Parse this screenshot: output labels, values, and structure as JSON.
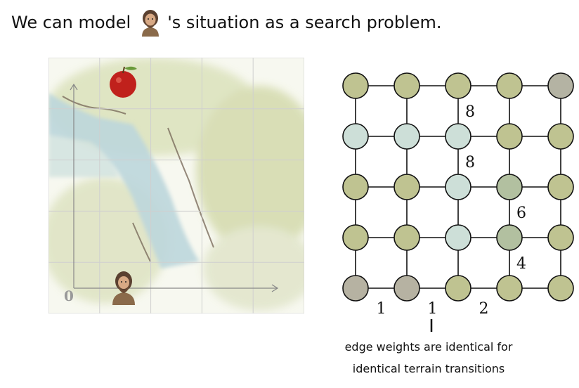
{
  "headline": {
    "before": "We can model",
    "character_icon": "caveman-icon",
    "after": "'s situation as a search problem."
  },
  "map": {
    "rows": 5,
    "cols": 5,
    "origin_label": "0",
    "apple_icon": "apple-icon",
    "agent_icon": "caveman-icon",
    "terrain": [
      "grass",
      "water",
      "rock"
    ]
  },
  "graph": {
    "node_colors": {
      "grass": "#bfc391",
      "water": "#cddfd8",
      "rock": "#b4b3a3",
      "forest": "#b2c0a0",
      "stone": "#b6b2a2"
    },
    "grid": [
      [
        "grass",
        "grass",
        "grass",
        "grass",
        "rock"
      ],
      [
        "water",
        "water",
        "water",
        "grass",
        "grass"
      ],
      [
        "grass",
        "grass",
        "water",
        "forest",
        "grass"
      ],
      [
        "grass",
        "grass",
        "water",
        "forest",
        "grass"
      ],
      [
        "stone",
        "stone",
        "grass",
        "grass",
        "grass"
      ]
    ],
    "edge_labels": [
      {
        "text": "8",
        "between": [
          [
            0,
            2
          ],
          [
            1,
            2
          ]
        ]
      },
      {
        "text": "8",
        "between": [
          [
            1,
            2
          ],
          [
            2,
            2
          ]
        ]
      },
      {
        "text": "6",
        "between": [
          [
            2,
            3
          ],
          [
            3,
            3
          ]
        ]
      },
      {
        "text": "4",
        "between": [
          [
            3,
            3
          ],
          [
            4,
            3
          ]
        ]
      },
      {
        "text": "1",
        "between": [
          [
            4,
            0
          ],
          [
            4,
            1
          ]
        ]
      },
      {
        "text": "1",
        "between": [
          [
            4,
            1
          ],
          [
            4,
            2
          ]
        ]
      },
      {
        "text": "2",
        "between": [
          [
            4,
            2
          ],
          [
            4,
            3
          ]
        ]
      }
    ]
  },
  "caption": {
    "line1": "edge weights are identical for",
    "line2": "identical terrain transitions"
  }
}
